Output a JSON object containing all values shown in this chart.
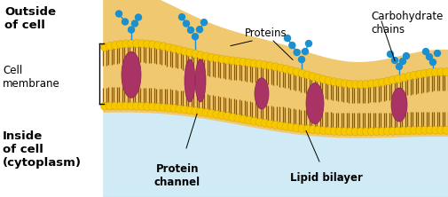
{
  "bg_color": "#ffffff",
  "mem_peach": "#f0c878",
  "mem_peach_dark": "#e8b050",
  "head_color": "#f5c800",
  "head_edge": "#d4a000",
  "tail_color": "#8b5a00",
  "protein_color": "#aa3366",
  "protein_edge": "#882255",
  "carb_color": "#1a90d0",
  "cytoplasm_color": "#c8e8f5",
  "outside_label": "Outside\nof cell",
  "inside_label": "Inside\nof cell\n(cytoplasm)",
  "cell_membrane_label": "Cell\nmembrane",
  "proteins_label": "Proteins",
  "protein_channel_label": "Protein\nchannel",
  "lipid_bilayer_label": "Lipid bilayer",
  "carbohydrate_label": "Carbohydrate\nchains",
  "figsize": [
    5.06,
    2.22
  ],
  "dpi": 100
}
